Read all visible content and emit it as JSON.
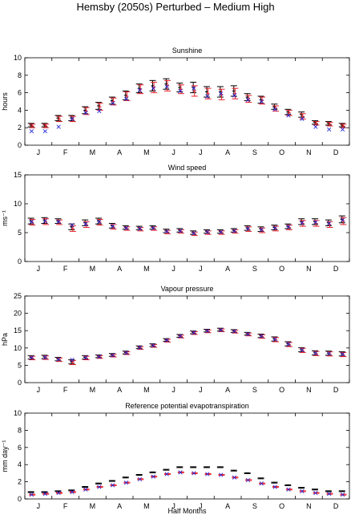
{
  "figure": {
    "title": "Hemsby (2050s) Perturbed – Medium High",
    "xlabel": "Half Months",
    "month_ticks": [
      "J",
      "F",
      "M",
      "A",
      "M",
      "J",
      "J",
      "A",
      "S",
      "O",
      "N",
      "D"
    ]
  },
  "chart_data": [
    {
      "type": "scatter",
      "title": "Sunshine",
      "ylabel": "hours",
      "ylim": [
        0,
        10
      ],
      "yticks": [
        0,
        2,
        4,
        6,
        8,
        10
      ],
      "x_count": 24,
      "series": [
        {
          "kind": "errorbar",
          "color": "#000000",
          "mean": [
            2.3,
            2.3,
            3.1,
            3.1,
            4.0,
            4.5,
            5.1,
            5.7,
            6.5,
            6.8,
            7.0,
            6.6,
            6.6,
            6.1,
            6.1,
            6.2,
            5.5,
            5.2,
            4.4,
            3.8,
            3.5,
            2.6,
            2.5,
            2.3
          ],
          "err": [
            0.2,
            0.2,
            0.3,
            0.3,
            0.4,
            0.4,
            0.4,
            0.5,
            0.5,
            0.6,
            0.6,
            0.5,
            0.6,
            0.6,
            0.6,
            0.6,
            0.4,
            0.4,
            0.3,
            0.3,
            0.3,
            0.2,
            0.2,
            0.2
          ]
        },
        {
          "kind": "errorbar",
          "color": "#e8202a",
          "mean": [
            2.2,
            2.2,
            3.0,
            3.0,
            3.9,
            4.4,
            5.0,
            5.6,
            6.4,
            6.6,
            6.8,
            6.4,
            6.2,
            5.9,
            5.8,
            5.9,
            5.3,
            5.1,
            4.2,
            3.7,
            3.3,
            2.5,
            2.4,
            2.2
          ],
          "err": [
            0.2,
            0.2,
            0.3,
            0.3,
            0.4,
            0.4,
            0.4,
            0.5,
            0.5,
            0.6,
            0.6,
            0.5,
            0.6,
            0.6,
            0.6,
            0.6,
            0.4,
            0.4,
            0.3,
            0.3,
            0.3,
            0.2,
            0.2,
            0.2
          ]
        },
        {
          "kind": "marker",
          "marker": "x",
          "color": "#2a2ad6",
          "values": [
            1.6,
            1.6,
            2.1,
            3.0,
            3.7,
            3.9,
            4.8,
            5.3,
            6.3,
            6.5,
            6.7,
            6.2,
            6.5,
            5.6,
            5.9,
            5.7,
            5.2,
            5.0,
            4.1,
            3.4,
            3.0,
            2.1,
            1.8,
            1.8
          ]
        }
      ]
    },
    {
      "type": "scatter",
      "title": "Wind speed",
      "ylabel": "ms⁻¹",
      "ylim": [
        0,
        15
      ],
      "yticks": [
        0,
        5,
        10,
        15
      ],
      "x_count": 24,
      "series": [
        {
          "kind": "errorbar",
          "color": "#000000",
          "mean": [
            7.0,
            7.1,
            7.0,
            6.0,
            6.7,
            7.0,
            6.2,
            5.9,
            5.8,
            5.9,
            5.3,
            5.4,
            5.0,
            5.2,
            5.2,
            5.4,
            5.8,
            5.6,
            5.9,
            6.1,
            6.9,
            6.9,
            6.7,
            7.3
          ],
          "err": [
            0.5,
            0.5,
            0.4,
            0.5,
            0.5,
            0.5,
            0.4,
            0.3,
            0.3,
            0.3,
            0.3,
            0.3,
            0.3,
            0.3,
            0.3,
            0.3,
            0.4,
            0.4,
            0.4,
            0.4,
            0.5,
            0.5,
            0.5,
            0.6
          ]
        },
        {
          "kind": "errorbar",
          "color": "#e8202a",
          "mean": [
            6.8,
            6.9,
            6.8,
            5.7,
            6.4,
            6.8,
            6.0,
            5.7,
            5.6,
            5.7,
            5.1,
            5.2,
            4.8,
            5.0,
            5.0,
            5.2,
            5.6,
            5.4,
            5.7,
            5.9,
            6.6,
            6.6,
            6.4,
            7.0
          ],
          "err": [
            0.5,
            0.5,
            0.4,
            0.5,
            0.5,
            0.5,
            0.4,
            0.3,
            0.3,
            0.3,
            0.3,
            0.3,
            0.3,
            0.3,
            0.3,
            0.3,
            0.4,
            0.4,
            0.4,
            0.4,
            0.5,
            0.5,
            0.5,
            0.6
          ]
        },
        {
          "kind": "marker",
          "marker": "x",
          "color": "#2a2ad6",
          "values": [
            6.9,
            7.0,
            6.9,
            6.3,
            6.5,
            6.9,
            6.1,
            5.8,
            5.7,
            5.8,
            5.2,
            5.3,
            4.9,
            5.1,
            5.1,
            5.3,
            5.7,
            5.5,
            5.8,
            6.0,
            6.7,
            6.8,
            6.6,
            7.2
          ]
        }
      ]
    },
    {
      "type": "scatter",
      "title": "Vapour pressure",
      "ylabel": "hPa",
      "ylim": [
        0,
        25
      ],
      "yticks": [
        0,
        5,
        10,
        15,
        20,
        25
      ],
      "x_count": 24,
      "series": [
        {
          "kind": "errorbar",
          "color": "#000000",
          "mean": [
            7.3,
            7.4,
            6.8,
            6.0,
            7.3,
            7.6,
            8.0,
            8.7,
            10.2,
            10.8,
            12.3,
            13.5,
            14.5,
            15.0,
            15.3,
            14.9,
            14.1,
            13.5,
            12.6,
            11.2,
            9.5,
            8.6,
            8.5,
            8.3
          ],
          "err": [
            0.5,
            0.5,
            0.5,
            0.6,
            0.5,
            0.4,
            0.4,
            0.4,
            0.4,
            0.4,
            0.4,
            0.4,
            0.4,
            0.4,
            0.4,
            0.4,
            0.4,
            0.5,
            0.6,
            0.6,
            0.6,
            0.6,
            0.6,
            0.6
          ]
        },
        {
          "kind": "errorbar",
          "color": "#e8202a",
          "mean": [
            7.1,
            7.2,
            6.6,
            5.8,
            7.1,
            7.4,
            7.8,
            8.5,
            10.0,
            10.6,
            12.1,
            13.3,
            14.3,
            14.8,
            15.1,
            14.7,
            13.9,
            13.3,
            12.4,
            11.0,
            9.3,
            8.4,
            8.3,
            8.1
          ],
          "err": [
            0.5,
            0.5,
            0.5,
            0.6,
            0.5,
            0.4,
            0.4,
            0.4,
            0.4,
            0.4,
            0.4,
            0.4,
            0.4,
            0.4,
            0.4,
            0.4,
            0.4,
            0.5,
            0.6,
            0.6,
            0.6,
            0.6,
            0.6,
            0.6
          ]
        },
        {
          "kind": "marker",
          "marker": "x",
          "color": "#2a2ad6",
          "values": [
            7.2,
            7.3,
            6.7,
            6.6,
            7.2,
            7.5,
            7.9,
            8.6,
            10.1,
            10.7,
            12.2,
            13.4,
            14.4,
            14.9,
            15.2,
            14.8,
            14.0,
            13.4,
            12.5,
            11.1,
            9.4,
            8.5,
            8.4,
            8.2
          ]
        }
      ]
    },
    {
      "type": "scatter",
      "title": "Reference potential evapotranspiration",
      "ylabel": "mm day⁻¹",
      "ylim": [
        0,
        10
      ],
      "yticks": [
        0,
        2,
        4,
        6,
        8,
        10
      ],
      "x_count": 24,
      "series": [
        {
          "kind": "errorbar",
          "color": "#000000",
          "mean": [
            0.8,
            0.8,
            0.9,
            1.0,
            1.4,
            1.8,
            2.1,
            2.5,
            2.8,
            3.1,
            3.4,
            3.7,
            3.7,
            3.7,
            3.7,
            3.3,
            3.0,
            2.4,
            1.9,
            1.6,
            1.3,
            1.1,
            0.9,
            0.9
          ],
          "err": [
            0.05,
            0.05,
            0.05,
            0.05,
            0.05,
            0.05,
            0.05,
            0.05,
            0.05,
            0.05,
            0.05,
            0.05,
            0.05,
            0.05,
            0.05,
            0.05,
            0.05,
            0.05,
            0.05,
            0.05,
            0.05,
            0.05,
            0.05,
            0.05
          ]
        },
        {
          "kind": "errorbar",
          "color": "#e8202a",
          "mean": [
            0.5,
            0.6,
            0.7,
            0.8,
            1.1,
            1.4,
            1.6,
            1.9,
            2.3,
            2.6,
            2.9,
            3.1,
            3.0,
            2.9,
            2.8,
            2.5,
            2.2,
            1.8,
            1.4,
            1.1,
            0.9,
            0.7,
            0.6,
            0.5
          ],
          "err": [
            0.05,
            0.05,
            0.05,
            0.05,
            0.05,
            0.05,
            0.05,
            0.05,
            0.05,
            0.05,
            0.05,
            0.05,
            0.05,
            0.05,
            0.05,
            0.05,
            0.05,
            0.05,
            0.05,
            0.05,
            0.05,
            0.05,
            0.05,
            0.05
          ]
        },
        {
          "kind": "marker",
          "marker": "x",
          "color": "#2a2ad6",
          "values": [
            0.5,
            0.6,
            0.7,
            0.8,
            1.1,
            1.4,
            1.6,
            1.9,
            2.3,
            2.6,
            2.9,
            3.1,
            3.0,
            2.9,
            2.8,
            2.5,
            2.2,
            1.8,
            1.4,
            1.1,
            0.9,
            0.7,
            0.6,
            0.5
          ]
        }
      ]
    }
  ]
}
